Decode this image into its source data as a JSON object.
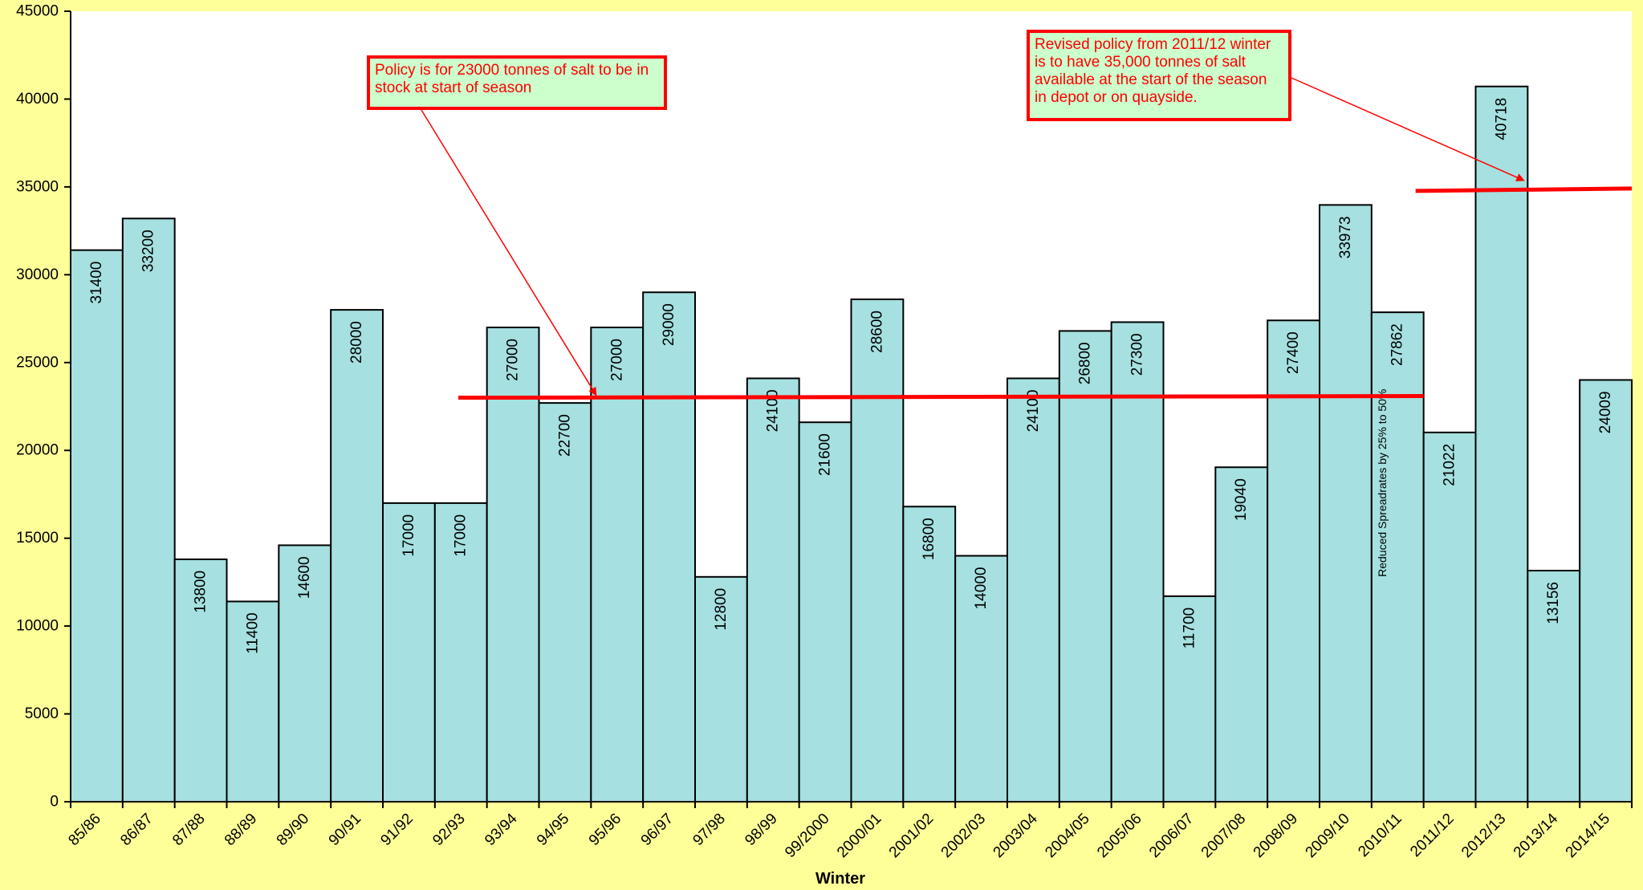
{
  "chart_data": {
    "type": "bar",
    "categories": [
      "85/86",
      "86/87",
      "87/88",
      "88/89",
      "89/90",
      "90/91",
      "91/92",
      "92/93",
      "93/94",
      "94/95",
      "95/96",
      "96/97",
      "97/98",
      "98/99",
      "99/2000",
      "2000/01",
      "2001/02",
      "2002/03",
      "2003/04",
      "2004/05",
      "2005/06",
      "2006/07",
      "2007/08",
      "2008/09",
      "2009/10",
      "2010/11",
      "2011/12",
      "2012/13",
      "2013/14",
      "2014/15"
    ],
    "values": [
      31400,
      33200,
      13800,
      11400,
      14600,
      28000,
      17000,
      17000,
      27000,
      22700,
      27000,
      29000,
      12800,
      24100,
      21600,
      28600,
      16800,
      14000,
      24100,
      26800,
      27300,
      11700,
      19040,
      27400,
      33973,
      27862,
      21022,
      40718,
      13156,
      24009
    ],
    "value_labels": [
      "31400",
      "33200",
      "13800",
      "11400",
      "14600",
      "28000",
      "17000",
      "17000",
      "27000",
      "22700",
      "27000",
      "29000",
      "12800",
      "24100",
      "21600",
      "28600",
      "16800",
      "14000",
      "24100",
      "26800",
      "27300",
      "11700",
      "19040",
      "27400",
      "33973",
      "27862",
      "21022",
      "40718",
      "13156",
      "24009"
    ],
    "xlabel": "Winter",
    "ylabel": "",
    "ylim": [
      0,
      45000
    ],
    "yticks": [
      "0",
      "5000",
      "10000",
      "15000",
      "20000",
      "25000",
      "30000",
      "35000",
      "40000",
      "45000"
    ],
    "bar_color": "#a6e0e0",
    "background_color": "#ffff99",
    "annotation_color": "#ff0000",
    "policy_lines": [
      {
        "from": "92/93",
        "to": "2010/11",
        "value": 23000
      },
      {
        "from": "2011/12",
        "to": "2014/15",
        "value": 35000
      }
    ],
    "annotations": [
      {
        "text": "Policy is for 23000 tonnes of salt to be in\nstock at start of season"
      },
      {
        "text": "Revised policy from 2011/12 winter\nis to have 35,000 tonnes of salt\navailable at the start of the season\nin depot or on quayside."
      }
    ],
    "bar_note": {
      "category": "2010/11",
      "text": "Reduced Spreadrates by 25% to 50%"
    }
  }
}
